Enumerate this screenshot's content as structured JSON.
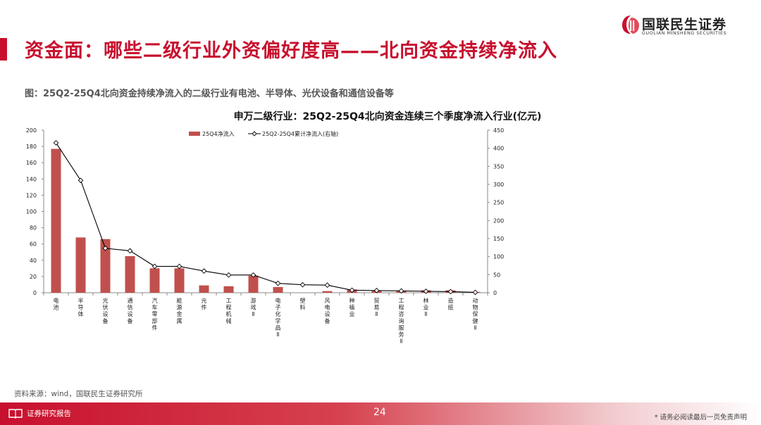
{
  "header": {
    "title": "资金面：哪些二级行业外资偏好度高——北向资金持续净流入",
    "logo_cn": "国联民生证券",
    "logo_en": "GUOLIAN MINSHENG SECURITIES"
  },
  "figure": {
    "caption": "图：25Q2-25Q4北向资金持续净流入的二级行业有电池、半导体、光伏设备和通信设备等"
  },
  "source": "资料来源：wind，国联民生证券研究所",
  "footer": {
    "left_label": "证券研究报告",
    "page": "24",
    "disclaimer": "* 请务必阅读最后一页免责声明"
  },
  "colors": {
    "brand_red": "#c8102e",
    "bar": "#c0504d",
    "line": "#000000"
  },
  "chart_data": {
    "type": "bar",
    "title": "申万二级行业：25Q2-25Q4北向资金连续三个季度净流入行业(亿元)",
    "categories": [
      "电池",
      "半导体",
      "光伏设备",
      "通信设备",
      "汽车零部件",
      "能源金属",
      "元件",
      "工程机械",
      "游戏Ⅱ",
      "电子化学品Ⅱ",
      "塑料",
      "风电设备",
      "种植业",
      "贸易Ⅱ",
      "工程咨询服务Ⅱ",
      "林业Ⅱ",
      "造纸",
      "动物保健Ⅱ"
    ],
    "series": [
      {
        "name": "25Q4净流入",
        "type": "bar",
        "axis": "left",
        "values": [
          177,
          68,
          66,
          45,
          30,
          30,
          9,
          8,
          21,
          7,
          0,
          2,
          4,
          3,
          2,
          3,
          3,
          1
        ]
      },
      {
        "name": "25Q2-25Q4累计净流入(右轴)",
        "type": "line",
        "axis": "right",
        "marker": "diamond",
        "values": [
          415,
          311,
          123,
          116,
          73,
          73,
          60,
          49,
          49,
          26,
          22,
          21,
          7,
          6,
          5,
          4,
          3,
          1
        ]
      }
    ],
    "y_left": {
      "min": 0,
      "max": 200,
      "step": 20,
      "ticks": [
        "0",
        "20",
        "40",
        "60",
        "80",
        "100",
        "120",
        "140",
        "160",
        "180",
        "200"
      ]
    },
    "y_right": {
      "min": 0,
      "max": 450,
      "step": 50,
      "ticks": [
        "0",
        "50",
        "100",
        "150",
        "200",
        "250",
        "300",
        "350",
        "400",
        "450"
      ]
    },
    "legend_position": "top-center",
    "grid": false
  }
}
